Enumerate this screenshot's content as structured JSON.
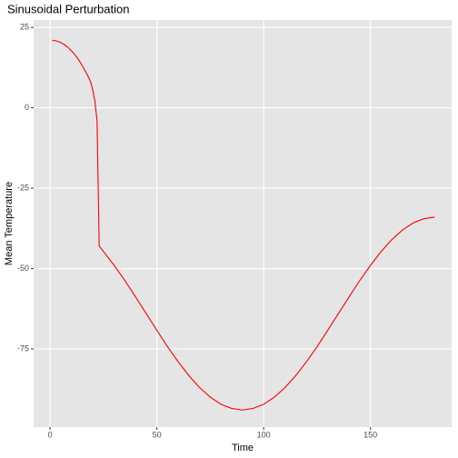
{
  "chart_data": {
    "type": "line",
    "title": "Sinusoidal Perturbation",
    "x_label": "Time",
    "y_label": "Mean Temperature",
    "x": [
      1,
      3,
      5,
      7,
      9,
      11,
      13,
      15,
      17,
      18,
      19,
      20,
      21,
      22,
      23,
      25,
      30,
      35,
      40,
      45,
      50,
      55,
      60,
      65,
      70,
      75,
      80,
      85,
      90,
      95,
      100,
      105,
      110,
      115,
      120,
      125,
      130,
      135,
      140,
      145,
      150,
      155,
      160,
      165,
      170,
      175,
      180
    ],
    "series": [
      {
        "name": "Mean Temperature",
        "color": "#ff0000",
        "values": [
          21,
          20.8,
          20.3,
          19.5,
          18.4,
          17,
          15.3,
          13.2,
          10.8,
          9.5,
          8,
          5.5,
          2,
          -4,
          -43,
          -44.7,
          -49,
          -53.7,
          -58.8,
          -64,
          -69.2,
          -74.3,
          -79,
          -83.3,
          -87,
          -90,
          -92.2,
          -93.5,
          -94,
          -93.5,
          -92.2,
          -90,
          -87,
          -83.3,
          -79,
          -74.3,
          -69.2,
          -64,
          -58.8,
          -53.7,
          -49,
          -44.7,
          -41,
          -38,
          -35.8,
          -34.5,
          -34
        ]
      }
    ],
    "xlim": [
      -7.7,
      188
    ],
    "ylim": [
      -99.3,
      27.3
    ],
    "xticks": [
      0,
      50,
      100,
      150
    ],
    "yticks": [
      -75,
      -50,
      -25,
      0,
      25
    ],
    "grid": true
  }
}
